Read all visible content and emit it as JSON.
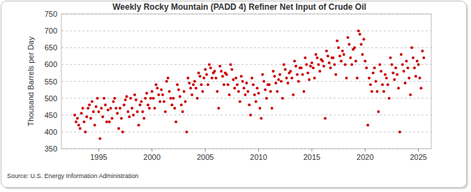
{
  "chart_data": {
    "type": "scatter",
    "title": "Weekly Rocky Mountain (PADD 4) Refiner Net Input of Crude Oil",
    "y_label": "Thousand Barrels per Day",
    "source": "Source: U.S. Energy Information Administration",
    "color": "#cc0000",
    "marker": "circle",
    "grid": true,
    "xlim": [
      1991.5,
      2026.2
    ],
    "xticks": [
      1995,
      2000,
      2005,
      2010,
      2015,
      2020,
      2025
    ],
    "ylim": [
      350,
      750
    ],
    "yticks": [
      350,
      400,
      450,
      500,
      550,
      600,
      650,
      700,
      750
    ],
    "x": [
      1992.75,
      1992.875,
      1993,
      1993.125,
      1993.25,
      1993.375,
      1993.5,
      1993.625,
      1993.75,
      1993.875,
      1994,
      1994.125,
      1994.25,
      1994.375,
      1994.5,
      1994.625,
      1994.75,
      1994.875,
      1995,
      1995.125,
      1995.25,
      1995.375,
      1995.5,
      1995.625,
      1995.75,
      1995.875,
      1996,
      1996.125,
      1996.25,
      1996.375,
      1996.5,
      1996.625,
      1996.75,
      1996.875,
      1997,
      1997.125,
      1997.25,
      1997.375,
      1997.5,
      1997.625,
      1997.75,
      1997.875,
      1998,
      1998.125,
      1998.25,
      1998.375,
      1998.5,
      1998.625,
      1998.75,
      1998.875,
      1999,
      1999.125,
      1999.25,
      1999.375,
      1999.5,
      1999.625,
      1999.75,
      1999.875,
      2000,
      2000.125,
      2000.25,
      2000.375,
      2000.5,
      2000.625,
      2000.75,
      2000.875,
      2001,
      2001.125,
      2001.25,
      2001.375,
      2001.5,
      2001.625,
      2001.75,
      2001.875,
      2002,
      2002.125,
      2002.25,
      2002.375,
      2002.5,
      2002.625,
      2002.75,
      2002.875,
      2003,
      2003.125,
      2003.25,
      2003.375,
      2003.5,
      2003.625,
      2003.75,
      2003.875,
      2004,
      2004.125,
      2004.25,
      2004.375,
      2004.5,
      2004.625,
      2004.75,
      2004.875,
      2005,
      2005.125,
      2005.25,
      2005.375,
      2005.5,
      2005.625,
      2005.75,
      2005.875,
      2006,
      2006.125,
      2006.25,
      2006.375,
      2006.5,
      2006.625,
      2006.75,
      2006.875,
      2007,
      2007.125,
      2007.25,
      2007.375,
      2007.5,
      2007.625,
      2007.75,
      2007.875,
      2008,
      2008.125,
      2008.25,
      2008.375,
      2008.5,
      2008.625,
      2008.75,
      2008.875,
      2009,
      2009.125,
      2009.25,
      2009.375,
      2009.5,
      2009.625,
      2009.75,
      2009.875,
      2010,
      2010.125,
      2010.25,
      2010.375,
      2010.5,
      2010.625,
      2010.75,
      2010.875,
      2011,
      2011.125,
      2011.25,
      2011.375,
      2011.5,
      2011.625,
      2011.75,
      2011.875,
      2012,
      2012.125,
      2012.25,
      2012.375,
      2012.5,
      2012.625,
      2012.75,
      2012.875,
      2013,
      2013.125,
      2013.25,
      2013.375,
      2013.5,
      2013.625,
      2013.75,
      2013.875,
      2014,
      2014.125,
      2014.25,
      2014.375,
      2014.5,
      2014.625,
      2014.75,
      2014.875,
      2015,
      2015.125,
      2015.25,
      2015.375,
      2015.5,
      2015.625,
      2015.75,
      2015.875,
      2016,
      2016.125,
      2016.25,
      2016.375,
      2016.5,
      2016.625,
      2016.75,
      2016.875,
      2017,
      2017.125,
      2017.25,
      2017.375,
      2017.5,
      2017.625,
      2017.75,
      2017.875,
      2018,
      2018.125,
      2018.25,
      2018.375,
      2018.5,
      2018.625,
      2018.75,
      2018.875,
      2019,
      2019.125,
      2019.25,
      2019.375,
      2019.5,
      2019.625,
      2019.75,
      2019.875,
      2020,
      2020.125,
      2020.25,
      2020.375,
      2020.5,
      2020.625,
      2020.75,
      2020.875,
      2021,
      2021.125,
      2021.25,
      2021.375,
      2021.5,
      2021.625,
      2021.75,
      2021.875,
      2022,
      2022.125,
      2022.25,
      2022.375,
      2022.5,
      2022.625,
      2022.75,
      2022.875,
      2023,
      2023.125,
      2023.25,
      2023.375,
      2023.5,
      2023.625,
      2023.75,
      2023.875,
      2024,
      2024.125,
      2024.25,
      2024.375,
      2024.5,
      2024.625,
      2024.75,
      2024.875,
      2025,
      2025.125,
      2025.25,
      2025.375,
      2025.5
    ],
    "values": [
      450,
      430,
      440,
      420,
      410,
      455,
      470,
      430,
      400,
      445,
      470,
      480,
      440,
      490,
      460,
      420,
      475,
      500,
      460,
      380,
      470,
      445,
      500,
      480,
      430,
      465,
      430,
      470,
      440,
      490,
      500,
      470,
      455,
      410,
      470,
      440,
      400,
      480,
      495,
      505,
      460,
      445,
      500,
      470,
      450,
      510,
      495,
      460,
      420,
      480,
      490,
      460,
      440,
      500,
      515,
      480,
      470,
      500,
      520,
      500,
      470,
      540,
      530,
      510,
      490,
      525,
      510,
      490,
      460,
      550,
      560,
      520,
      500,
      480,
      500,
      470,
      430,
      540,
      525,
      505,
      480,
      460,
      520,
      490,
      400,
      560,
      545,
      530,
      510,
      540,
      550,
      530,
      500,
      575,
      565,
      540,
      520,
      560,
      585,
      570,
      540,
      600,
      590,
      560,
      575,
      580,
      560,
      520,
      470,
      595,
      580,
      565,
      540,
      575,
      570,
      540,
      510,
      600,
      585,
      555,
      530,
      560,
      540,
      520,
      490,
      565,
      550,
      530,
      510,
      545,
      520,
      480,
      450,
      560,
      540,
      510,
      490,
      530,
      515,
      470,
      440,
      570,
      550,
      525,
      500,
      540,
      540,
      520,
      470,
      580,
      565,
      545,
      520,
      555,
      570,
      550,
      500,
      600,
      585,
      560,
      545,
      575,
      580,
      560,
      510,
      610,
      595,
      570,
      550,
      590,
      590,
      570,
      520,
      620,
      600,
      575,
      555,
      595,
      605,
      590,
      560,
      630,
      620,
      600,
      580,
      615,
      610,
      595,
      440,
      640,
      625,
      605,
      590,
      620,
      620,
      600,
      570,
      670,
      650,
      625,
      610,
      640,
      630,
      600,
      560,
      680,
      660,
      620,
      600,
      645,
      650,
      610,
      560,
      700,
      690,
      660,
      630,
      675,
      610,
      590,
      420,
      560,
      540,
      520,
      575,
      590,
      550,
      520,
      460,
      600,
      580,
      540,
      520,
      570,
      560,
      540,
      500,
      620,
      600,
      575,
      555,
      590,
      570,
      530,
      400,
      630,
      600,
      580,
      545,
      610,
      590,
      560,
      510,
      650,
      620,
      590,
      565,
      610,
      600,
      560,
      530,
      640,
      620
    ]
  }
}
